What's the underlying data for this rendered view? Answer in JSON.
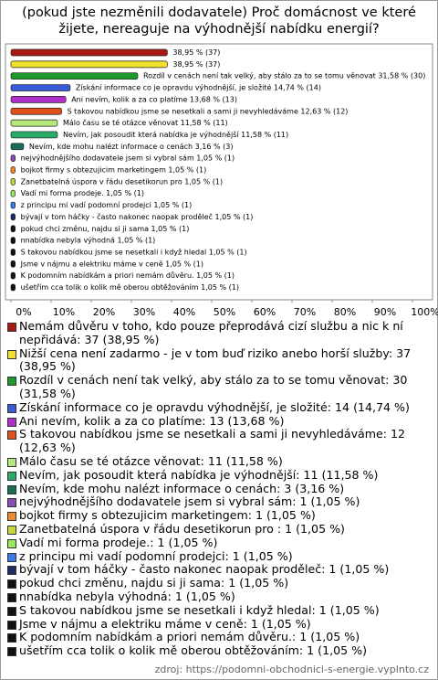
{
  "chart_data": {
    "type": "bar",
    "orientation": "horizontal",
    "title": "(pokud jste nezměnili dodavatele) Proč domácnost ve které žijete, nereaguje na výhodnější nabídku energií?",
    "categories": [
      "Nemám důvěru v toho, kdo pouze přeprodává cizí službu a nic k ní nepřidává",
      "Nižší cena není zadarmo - je v tom buď riziko anebo horší služby",
      "Rozdíl v cenách není tak velký, aby stálo za to se tomu věnovat",
      "Získání informace co je opravdu výhodnější, je složité",
      "Ani nevím, kolik a za co platíme",
      "S takovou nabídkou jsme se nesetkali a sami ji nevyhledáváme",
      "Málo času se té otázce věnovat",
      "Nevím, jak posoudit která nabídka je výhodnější",
      "Nevím, kde mohu nalézt informace o cenách",
      "nejvýhodnějšího dodavatele jsem si vybral sám",
      "bojkot firmy s obtezujicim marketingem",
      "Zanetbatelná úspora v řádu desetikorun pro ",
      "Vadí mi forma prodeje.",
      "z principu mi vadí podomní prodejci",
      "bývají v tom háčky - často nakonec naopak proděleč",
      "pokud chci změnu, najdu si ji sama",
      "nnabídka nebyla výhodná",
      "S takovou nabídkou jsme se nesetkali i když hledal",
      "Jsme v nájmu a elektriku máme v ceně",
      "K podomním nabídkám a priori nemám důvěru.",
      "ušetřím cca tolik o kolik mě oberou obtěžováním"
    ],
    "values": [
      38.95,
      38.95,
      31.58,
      14.74,
      13.68,
      12.63,
      11.58,
      11.58,
      3.16,
      1.05,
      1.05,
      1.05,
      1.05,
      1.05,
      1.05,
      1.05,
      1.05,
      1.05,
      1.05,
      1.05,
      1.05
    ],
    "value_labels": [
      "38,95 % (37)",
      "38,95 % (37)",
      "Rozdíl v cenách není tak velký, aby stálo za to se tomu věnovat 31,58 % (30)",
      "Získání informace co je opravdu výhodnější, je složité 14,74 % (14)",
      "Ani nevím, kolik a za co platíme 13,68 % (13)",
      "S takovou nabídkou jsme se nesetkali a sami ji nevyhledáváme 12,63 % (12)",
      "Málo času se té otázce věnovat 11,58 % (11)",
      "Nevím, jak posoudit která nabídka je výhodnější 11,58 % (11)",
      "Nevím, kde mohu nalézt informace o cenách 3,16 % (3)",
      "nejvýhodnějšího dodavatele jsem si vybral sám 1,05 % (1)",
      "bojkot firmy s obtezujicim marketingem 1,05 % (1)",
      "Zanetbatelná úspora v řádu desetikorun pro  1,05 % (1)",
      "Vadí mi forma prodeje. 1,05 % (1)",
      "z principu mi vadí podomní prodejci 1,05 % (1)",
      "bývají v tom háčky - často nakonec naopak proděleč 1,05 % (1)",
      "pokud chci změnu, najdu si ji sama 1,05 % (1)",
      "nnabídka nebyla výhodná 1,05 % (1)",
      "S takovou nabídkou jsme se nesetkali i když hledal 1,05 % (1)",
      "Jsme v nájmu a elektriku máme v ceně 1,05 % (1)",
      "K podomním nabídkám a priori nemám důvěru. 1,05 % (1)",
      "ušetřím cca tolik o kolik mě oberou obtěžováním 1,05 % (1)"
    ],
    "legend_labels": [
      "Nemám důvěru v toho, kdo pouze přeprodává cizí službu a nic k ní nepřidává: 37 (38,95 %)",
      "Nižší cena není zadarmo - je v tom buď riziko anebo horší služby: 37 (38,95 %)",
      "Rozdíl v cenách není tak velký, aby stálo za to se tomu věnovat: 30 (31,58 %)",
      "Získání informace co je opravdu výhodnější, je složité: 14 (14,74 %)",
      "Ani nevím, kolik a za co platíme: 13 (13,68 %)",
      "S takovou nabídkou jsme se nesetkali a sami ji nevyhledáváme: 12 (12,63 %)",
      "Málo času se té otázce věnovat: 11 (11,58 %)",
      "Nevím, jak posoudit která nabídka je výhodnější: 11 (11,58 %)",
      "Nevím, kde mohu nalézt informace o cenách: 3 (3,16 %)",
      "nejvýhodnějšího dodavatele jsem si vybral sám: 1 (1,05 %)",
      "bojkot firmy s obtezujicim marketingem: 1 (1,05 %)",
      "Zanetbatelná úspora v řádu desetikorun pro : 1 (1,05 %)",
      "Vadí mi forma prodeje.: 1 (1,05 %)",
      "z principu mi vadí podomní prodejci: 1 (1,05 %)",
      "bývají v tom háčky - často nakonec naopak proděleč: 1 (1,05 %)",
      "pokud chci změnu, najdu si ji sama: 1 (1,05 %)",
      "nnabídka nebyla výhodná: 1 (1,05 %)",
      "S takovou nabídkou jsme se nesetkali i když hledal: 1 (1,05 %)",
      "Jsme v nájmu a elektriku máme v ceně: 1 (1,05 %)",
      "K podomním nabídkám a priori nemám důvěru.: 1 (1,05 %)",
      "ušetřím cca tolik o kolik mě oberou obtěžováním: 1 (1,05 %)"
    ],
    "colors": [
      "#a81a10",
      "#f2e02a",
      "#1e9a2a",
      "#3a5ad8",
      "#b02ec8",
      "#e0501c",
      "#b4e87a",
      "#2aaa66",
      "#1a6a5a",
      "#8a4ab8",
      "#f08a2a",
      "#c8d83a",
      "#9ae85a",
      "#3a7ae8",
      "#1a2a6a",
      "#111111",
      "#111111",
      "#111111",
      "#111111",
      "#111111",
      "#111111"
    ],
    "xlim": [
      0,
      100
    ],
    "xticks": [
      {
        "value": 0,
        "label": "0%"
      },
      {
        "value": 10,
        "label": "10%"
      },
      {
        "value": 20,
        "label": "20%"
      },
      {
        "value": 30,
        "label": "30%"
      },
      {
        "value": 40,
        "label": "40%"
      },
      {
        "value": 50,
        "label": "50%"
      },
      {
        "value": 60,
        "label": "60%"
      },
      {
        "value": 70,
        "label": "70%"
      },
      {
        "value": 80,
        "label": "80%"
      },
      {
        "value": 90,
        "label": "90%"
      },
      {
        "value": 100,
        "label": "100%"
      }
    ],
    "source": "zdroj: https://podomni-obchodnici-s-energie.vyplnto.cz"
  }
}
